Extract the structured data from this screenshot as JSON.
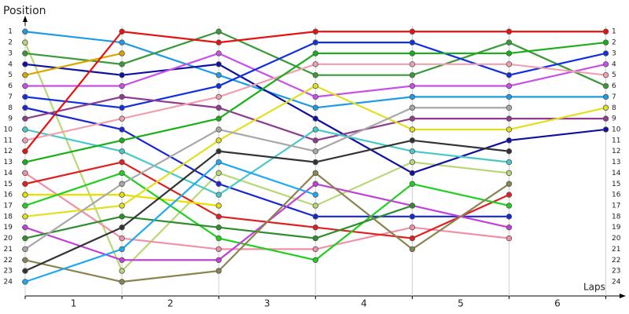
{
  "chart_data": {
    "type": "line",
    "y_label": "Position",
    "x_label": "Laps",
    "x": [
      0,
      1,
      2,
      3,
      4,
      5,
      6
    ],
    "xlim": [
      0,
      6.15
    ],
    "xticks": [
      {
        "value": 0.5,
        "label": "1"
      },
      {
        "value": 1.5,
        "label": "2"
      },
      {
        "value": 2.5,
        "label": "3"
      },
      {
        "value": 3.5,
        "label": "4"
      },
      {
        "value": 4.5,
        "label": "5"
      },
      {
        "value": 5.5,
        "label": "6"
      }
    ],
    "ylim": [
      25.3,
      -0.1
    ],
    "yticks": [
      1,
      2,
      3,
      4,
      5,
      6,
      7,
      8,
      9,
      10,
      11,
      12,
      13,
      14,
      15,
      16,
      17,
      18,
      19,
      20,
      21,
      22,
      23,
      24
    ],
    "series": [
      {
        "color": "#1e9be6",
        "values": [
          1,
          2,
          5,
          8,
          7,
          7,
          7
        ]
      },
      {
        "color": "#b8d878",
        "values": [
          2,
          23,
          14,
          17,
          13,
          14,
          null
        ]
      },
      {
        "color": "#3a9a3a",
        "values": [
          3,
          4,
          1,
          5,
          5,
          2,
          6
        ]
      },
      {
        "color": "#1010a0",
        "values": [
          4,
          5,
          4,
          9,
          14,
          11,
          10
        ]
      },
      {
        "color": "#d8a800",
        "values": [
          5,
          3,
          null,
          null,
          null,
          null,
          null
        ]
      },
      {
        "color": "#c850e8",
        "values": [
          6,
          6,
          3,
          7,
          6,
          6,
          4
        ]
      },
      {
        "color": "#1030e0",
        "values": [
          7,
          8,
          6,
          2,
          2,
          5,
          3
        ]
      },
      {
        "color": "#1828d0",
        "values": [
          8,
          10,
          15,
          18,
          18,
          18,
          null
        ]
      },
      {
        "color": "#8e3c8e",
        "values": [
          9,
          7,
          8,
          11,
          9,
          9,
          9
        ]
      },
      {
        "color": "#48c8c8",
        "values": [
          10,
          12,
          16,
          10,
          12,
          13,
          null
        ]
      },
      {
        "color": "#f0a0b0",
        "values": [
          11,
          9,
          7,
          4,
          4,
          4,
          5
        ]
      },
      {
        "color": "#e81010",
        "values": [
          12,
          1,
          2,
          1,
          1,
          1,
          1
        ]
      },
      {
        "color": "#18b018",
        "values": [
          13,
          11,
          9,
          3,
          3,
          3,
          2
        ]
      },
      {
        "color": "#f090a8",
        "values": [
          14,
          20,
          21,
          21,
          19,
          20,
          null
        ]
      },
      {
        "color": "#e02020",
        "values": [
          15,
          13,
          18,
          19,
          20,
          16,
          null
        ]
      },
      {
        "color": "#e8e000",
        "values": [
          16,
          16,
          17,
          null,
          null,
          null,
          null
        ]
      },
      {
        "color": "#20d020",
        "values": [
          17,
          14,
          20,
          22,
          15,
          17,
          null
        ]
      },
      {
        "color": "#e0e020",
        "values": [
          18,
          17,
          11,
          6,
          10,
          10,
          8
        ]
      },
      {
        "color": "#c040d8",
        "values": [
          19,
          22,
          22,
          15,
          17,
          19,
          null
        ]
      },
      {
        "color": "#2e8e2e",
        "values": [
          20,
          18,
          19,
          20,
          17,
          null,
          null
        ]
      },
      {
        "color": "#a8a8a8",
        "values": [
          21,
          15,
          10,
          12,
          8,
          8,
          null
        ]
      },
      {
        "color": "#8a8450",
        "values": [
          22,
          24,
          23,
          14,
          21,
          15,
          null
        ]
      },
      {
        "color": "#333333",
        "values": [
          23,
          19,
          12,
          13,
          11,
          12,
          null
        ]
      },
      {
        "color": "#20a8f0",
        "values": [
          24,
          21,
          13,
          16,
          null,
          null,
          null
        ]
      }
    ]
  }
}
